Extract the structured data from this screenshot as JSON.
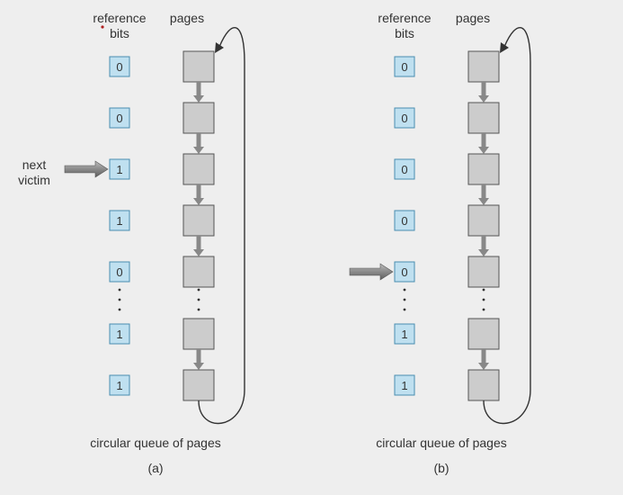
{
  "panels": [
    {
      "id": "a",
      "header_reference": "reference",
      "header_bits": "bits",
      "header_pages": "pages",
      "bits": [
        "0",
        "0",
        "1",
        "1",
        "0",
        "1",
        "1"
      ],
      "caption": "circular queue of pages",
      "label": "(a)",
      "pointer_index": 2,
      "pointer_label_line1": "next",
      "pointer_label_line2": "victim"
    },
    {
      "id": "b",
      "header_reference": "reference",
      "header_bits": "bits",
      "header_pages": "pages",
      "bits": [
        "0",
        "0",
        "0",
        "0",
        "0",
        "1",
        "1"
      ],
      "caption": "circular queue of pages",
      "label": "(b)",
      "pointer_index": 4
    }
  ],
  "colors": {
    "bit_box_fill": "#bfe0f0",
    "bit_box_stroke": "#4a8db0",
    "page_fill": "#cccccc",
    "page_stroke": "#555555",
    "arrow": "#888888",
    "loop": "#333333"
  }
}
